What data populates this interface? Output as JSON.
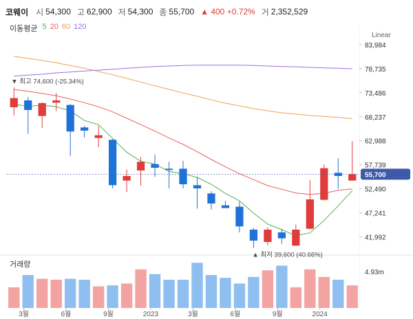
{
  "header": {
    "name": "코웨이",
    "open_label": "시",
    "open": "54,300",
    "high_label": "고",
    "high": "62,900",
    "low_label": "저",
    "low": "54,300",
    "close_label": "종",
    "close": "55,700",
    "change": "▲ 400 +0.72%",
    "volume_label": "거",
    "volume": "2,352,529"
  },
  "ma": {
    "title": "이동평균",
    "items": [
      {
        "label": "5",
        "color": "#4caf50"
      },
      {
        "label": "20",
        "color": "#e85d5d"
      },
      {
        "label": "60",
        "color": "#f0a050"
      },
      {
        "label": "120",
        "color": "#9a6de0"
      }
    ]
  },
  "scale_mode": "Linear",
  "volume_title": "거래량",
  "colors": {
    "up": "#e03c3c",
    "down": "#1e73d8",
    "vol_up": "#f4a3a3",
    "vol_down": "#8fbff0",
    "badge": "#3d5aa8"
  },
  "chart_data": {
    "type": "candlestick",
    "title": "코웨이",
    "price_range": [
      38500,
      85000
    ],
    "y_ticks": [
      "83,984",
      "78,735",
      "73,486",
      "68,237",
      "62,988",
      "57,739",
      "52,490",
      "47,241",
      "41,992"
    ],
    "x_ticks": [
      "3월",
      "6월",
      "9월",
      "2023",
      "3월",
      "6월",
      "9월",
      "2024"
    ],
    "current_price_label": "55,700",
    "high_annotation": "최고 74,600 (-25.34%)",
    "low_annotation": "최저 39,600 (40.66%)",
    "volume_tick": "4.93m",
    "volume_max": 5.4,
    "candles": [
      {
        "o": 70300,
        "h": 74600,
        "l": 68500,
        "c": 72300
      },
      {
        "o": 71800,
        "h": 72500,
        "l": 64500,
        "c": 69700
      },
      {
        "o": 68400,
        "h": 71400,
        "l": 65800,
        "c": 71200
      },
      {
        "o": 71300,
        "h": 73400,
        "l": 69500,
        "c": 71800
      },
      {
        "o": 70800,
        "h": 71000,
        "l": 59700,
        "c": 65000
      },
      {
        "o": 65900,
        "h": 66300,
        "l": 63700,
        "c": 65200
      },
      {
        "o": 63600,
        "h": 66200,
        "l": 61600,
        "c": 64200
      },
      {
        "o": 63200,
        "h": 63300,
        "l": 52600,
        "c": 53300
      },
      {
        "o": 54300,
        "h": 56700,
        "l": 51800,
        "c": 55300
      },
      {
        "o": 56500,
        "h": 59500,
        "l": 53200,
        "c": 58400
      },
      {
        "o": 57900,
        "h": 60000,
        "l": 55100,
        "c": 57100
      },
      {
        "o": 56900,
        "h": 58400,
        "l": 52600,
        "c": 56600
      },
      {
        "o": 56900,
        "h": 58600,
        "l": 52600,
        "c": 53500
      },
      {
        "o": 53300,
        "h": 55100,
        "l": 48200,
        "c": 52600
      },
      {
        "o": 51500,
        "h": 52000,
        "l": 48000,
        "c": 49300
      },
      {
        "o": 48900,
        "h": 49900,
        "l": 48400,
        "c": 48300
      },
      {
        "o": 48600,
        "h": 49700,
        "l": 43000,
        "c": 44300
      },
      {
        "o": 43600,
        "h": 44000,
        "l": 39600,
        "c": 41200
      },
      {
        "o": 40900,
        "h": 44100,
        "l": 40200,
        "c": 43600
      },
      {
        "o": 43000,
        "h": 43700,
        "l": 40500,
        "c": 41700
      },
      {
        "o": 40100,
        "h": 44700,
        "l": 40000,
        "c": 43600
      },
      {
        "o": 43800,
        "h": 54400,
        "l": 43600,
        "c": 50200
      },
      {
        "o": 50100,
        "h": 57800,
        "l": 50000,
        "c": 57000
      },
      {
        "o": 56000,
        "h": 59200,
        "l": 52500,
        "c": 55300
      },
      {
        "o": 54300,
        "h": 62900,
        "l": 54300,
        "c": 55700
      }
    ],
    "volumes": [
      2.2,
      3.5,
      3.1,
      3.0,
      3.1,
      3.0,
      2.3,
      2.4,
      2.6,
      4.1,
      3.6,
      3.0,
      3.0,
      4.8,
      3.5,
      3.2,
      2.6,
      3.3,
      4.0,
      4.5,
      2.2,
      4.1,
      3.3,
      3.0,
      2.4
    ],
    "ma_series": [
      {
        "name": "MA5",
        "color": "#4caf50",
        "values": [
          71000,
          70500,
          70800,
          70400,
          69500,
          67400,
          66500,
          63500,
          60500,
          58500,
          57900,
          56300,
          55800,
          55000,
          53500,
          51500,
          49900,
          47200,
          44800,
          43600,
          42300,
          42900,
          45600,
          48800,
          52100
        ]
      },
      {
        "name": "MA20",
        "color": "#e85d5d",
        "values": [
          74200,
          73800,
          73300,
          72800,
          72100,
          71300,
          70400,
          69300,
          67900,
          66500,
          65100,
          63600,
          62200,
          60600,
          58900,
          57300,
          55800,
          54500,
          53200,
          52400,
          51600,
          51300,
          51500,
          52200,
          52500
        ]
      },
      {
        "name": "MA60",
        "color": "#f0a050",
        "values": [
          81400,
          81000,
          80500,
          80000,
          79400,
          78800,
          78100,
          77400,
          76600,
          75800,
          75000,
          74200,
          73400,
          72700,
          71900,
          71200,
          70600,
          70000,
          69500,
          69100,
          68800,
          68500,
          68300,
          68100,
          67800
        ]
      },
      {
        "name": "MA120",
        "color": "#9a6de0",
        "values": [
          77100,
          77300,
          77500,
          77800,
          78000,
          78200,
          78400,
          78600,
          78800,
          79000,
          79200,
          79300,
          79400,
          79500,
          79500,
          79500,
          79500,
          79400,
          79300,
          79200,
          79100,
          79000,
          78900,
          78800,
          78700
        ]
      }
    ]
  }
}
